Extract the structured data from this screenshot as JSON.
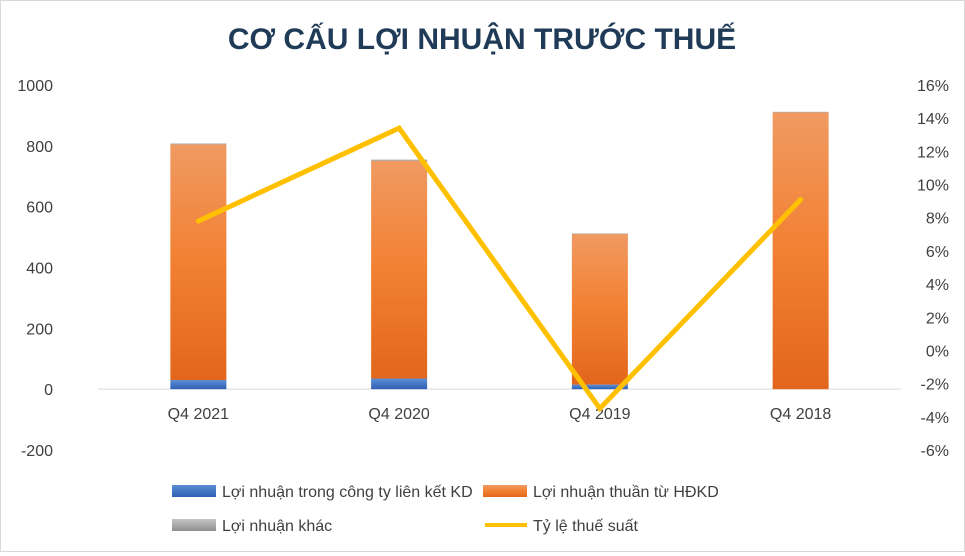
{
  "chart_data": {
    "type": "bar",
    "title": "CƠ CẤU LỢI NHUẬN TRƯỚC THUẾ",
    "categories": [
      "Q4 2021",
      "Q4 2020",
      "Q4 2019",
      "Q4 2018"
    ],
    "series": [
      {
        "name": "Lợi nhuận trong công ty liên kết KD",
        "type": "bar",
        "axis": "left",
        "color": "#4472c4",
        "values": [
          30,
          35,
          15,
          0
        ]
      },
      {
        "name": "Lợi nhuận thuần từ HĐKD",
        "type": "bar",
        "axis": "left",
        "color": "#ed7d31",
        "values": [
          775,
          716,
          495,
          910
        ]
      },
      {
        "name": "Lợi nhuận khác",
        "type": "bar",
        "axis": "left",
        "color": "#a5a5a5",
        "values": [
          3,
          4,
          2,
          2
        ]
      },
      {
        "name": "Tỷ lệ thuế suất",
        "type": "line",
        "axis": "right",
        "color": "#ffc000",
        "values": [
          7.8,
          13.4,
          -3.5,
          9.1
        ]
      }
    ],
    "y_left": {
      "min": -200,
      "max": 1000,
      "step": 200,
      "ticks": [
        "-200",
        "0",
        "200",
        "400",
        "600",
        "800",
        "1000"
      ]
    },
    "y_right": {
      "min": -6,
      "max": 16,
      "step": 2,
      "ticks": [
        "-6%",
        "-4%",
        "-2%",
        "0%",
        "2%",
        "4%",
        "6%",
        "8%",
        "10%",
        "12%",
        "14%",
        "16%"
      ]
    },
    "xlabel": "",
    "ylabel": "",
    "grid": false,
    "legend_position": "bottom"
  }
}
